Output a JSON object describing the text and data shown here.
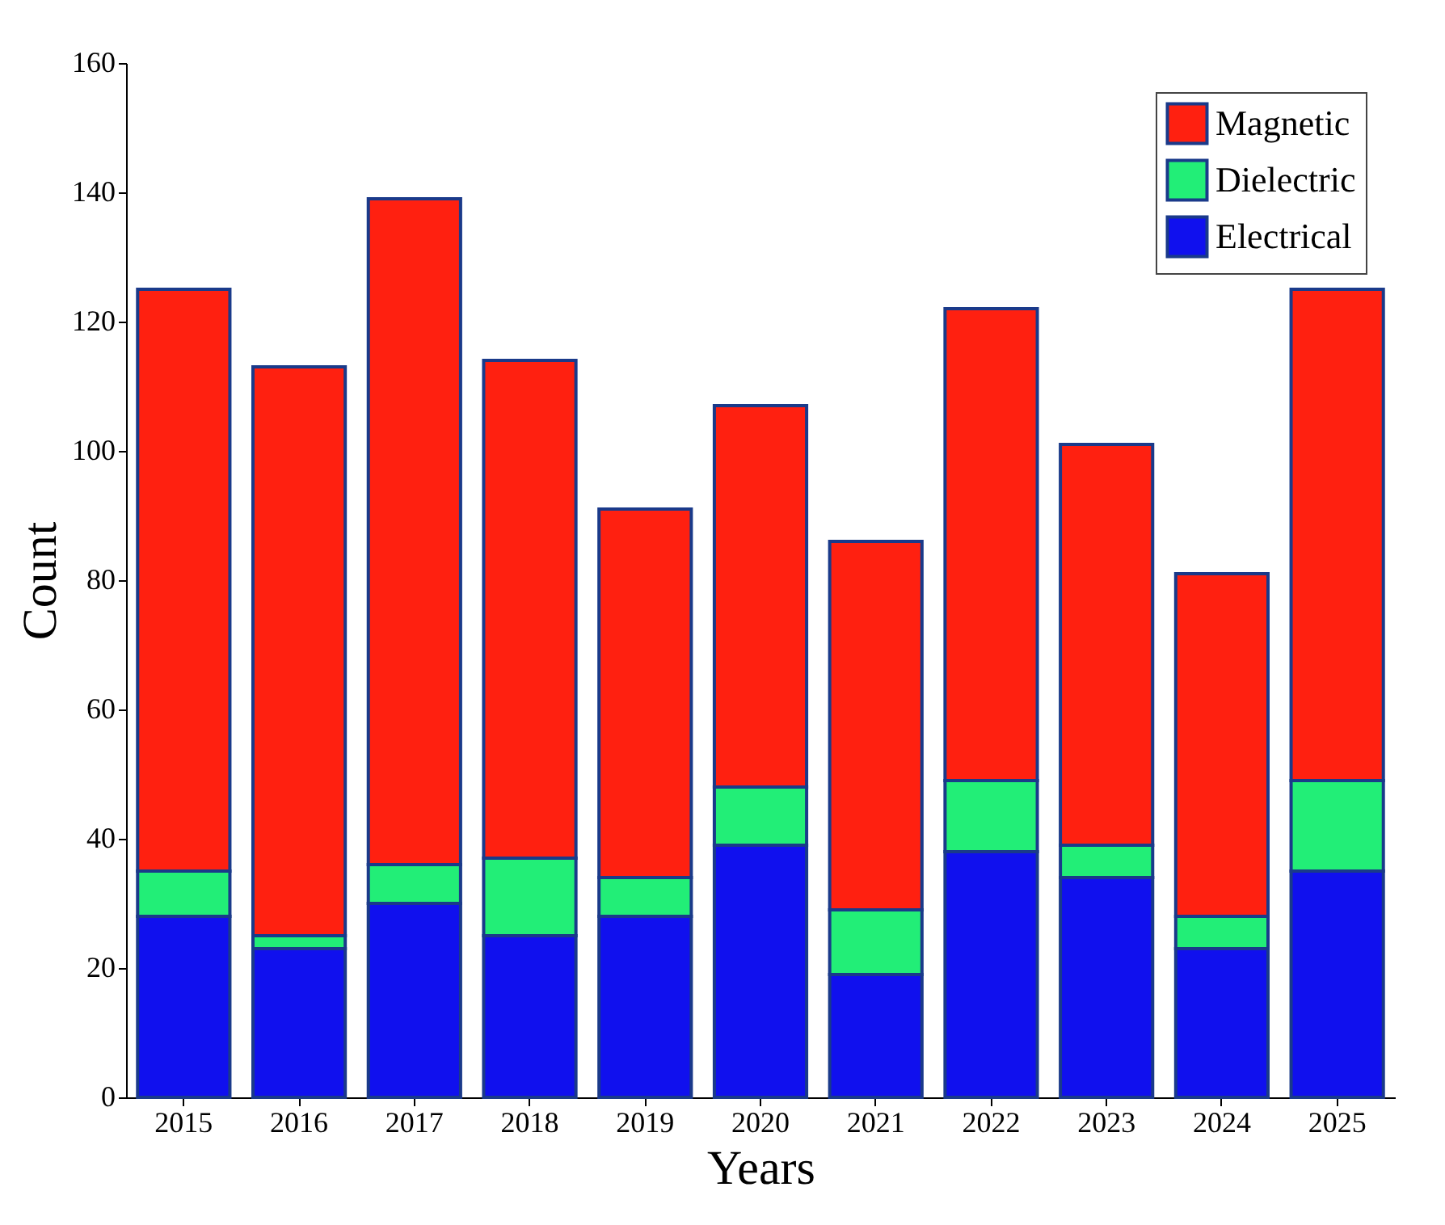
{
  "chart_data": {
    "type": "bar",
    "stacked": true,
    "xlabel": "Years",
    "ylabel": "Count",
    "categories": [
      "2015",
      "2016",
      "2017",
      "2018",
      "2019",
      "2020",
      "2021",
      "2022",
      "2023",
      "2024",
      "2025"
    ],
    "series": [
      {
        "name": "Electrical",
        "color": "#1010ee",
        "values": [
          28,
          23,
          30,
          25,
          28,
          39,
          19,
          38,
          34,
          23,
          35
        ]
      },
      {
        "name": "Dielectric",
        "color": "#22ee77",
        "values": [
          7,
          2,
          6,
          12,
          6,
          9,
          10,
          11,
          5,
          5,
          14
        ]
      },
      {
        "name": "Magnetic",
        "color": "#ff2010",
        "values": [
          90,
          88,
          103,
          77,
          57,
          59,
          57,
          73,
          62,
          53,
          76
        ]
      }
    ],
    "ylim": [
      0,
      160
    ],
    "yticks": [
      0,
      20,
      40,
      60,
      80,
      100,
      120,
      140,
      160
    ],
    "grid": false,
    "legend": "top right"
  }
}
